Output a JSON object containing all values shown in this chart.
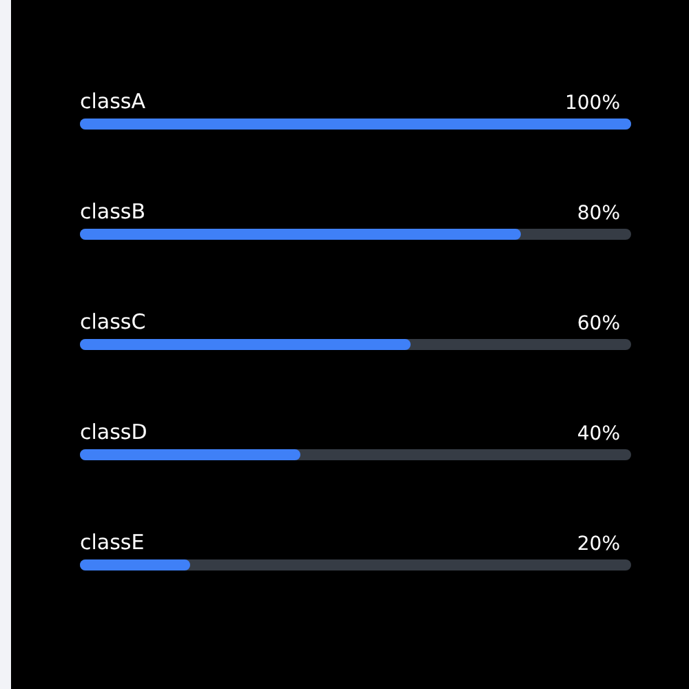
{
  "chart_data": {
    "type": "bar",
    "orientation": "horizontal",
    "categories": [
      "classA",
      "classB",
      "classC",
      "classD",
      "classE"
    ],
    "values": [
      100,
      80,
      60,
      40,
      20
    ],
    "value_labels": [
      "100%",
      "80%",
      "60%",
      "40%",
      "20%"
    ],
    "color": "#3f80f7",
    "xlim": [
      0,
      100
    ],
    "tick_labels": "y"
  }
}
